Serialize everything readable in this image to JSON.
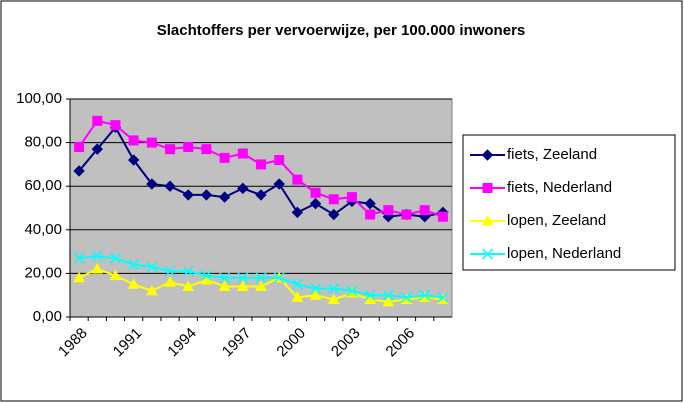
{
  "chart_data": {
    "type": "line",
    "title": "Slachtoffers per vervoerwijze, per 100.000 inwoners",
    "categories": [
      "1988",
      null,
      null,
      "1991",
      null,
      null,
      "1994",
      null,
      null,
      "1997",
      null,
      null,
      "2000",
      null,
      null,
      "2003",
      null,
      null,
      "2006",
      null,
      null
    ],
    "series": [
      {
        "name": "fiets, Zeeland",
        "color": "#000080",
        "marker": "diamond",
        "values": [
          67,
          77,
          87,
          72,
          61,
          60,
          56,
          56,
          55,
          59,
          56,
          61,
          48,
          52,
          47,
          53,
          52,
          46,
          47,
          46,
          48
        ]
      },
      {
        "name": "fiets, Nederland",
        "color": "#ff00ff",
        "marker": "square",
        "values": [
          78,
          90,
          88,
          81,
          80,
          77,
          78,
          77,
          73,
          75,
          70,
          72,
          63,
          57,
          54,
          55,
          47,
          49,
          47,
          49,
          46
        ]
      },
      {
        "name": "lopen, Zeeland",
        "color": "#ffff00",
        "marker": "triangle",
        "values": [
          18,
          22,
          19,
          15,
          12,
          16,
          14,
          17,
          14,
          14,
          14,
          18,
          9,
          10,
          8,
          11,
          8,
          7,
          8,
          9,
          8
        ]
      },
      {
        "name": "lopen, Nederland",
        "color": "#00ffff",
        "marker": "x",
        "values": [
          27,
          28,
          27,
          24,
          23,
          21,
          21,
          19,
          18,
          18,
          18,
          18,
          15,
          13,
          13,
          12,
          10,
          10,
          9,
          10,
          9
        ]
      }
    ],
    "ylim": [
      0,
      100
    ],
    "yticks": [
      {
        "value": 0,
        "label": "0,00"
      },
      {
        "value": 20,
        "label": "20,00"
      },
      {
        "value": 40,
        "label": "40,00"
      },
      {
        "value": 60,
        "label": "60,00"
      },
      {
        "value": 80,
        "label": "80,00"
      },
      {
        "value": 100,
        "label": "100,00"
      }
    ],
    "grid": true,
    "plot_background": "#c0c0c0",
    "legend": "right"
  }
}
